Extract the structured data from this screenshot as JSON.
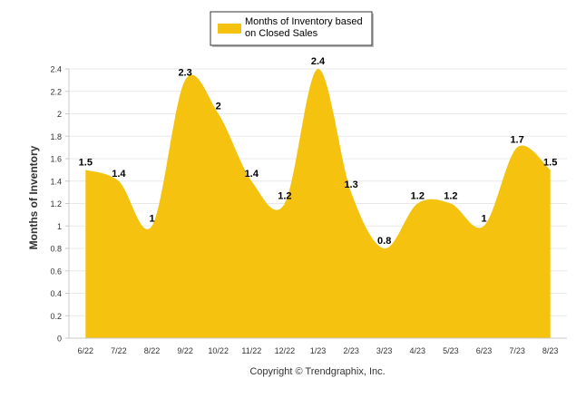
{
  "chart_data": {
    "type": "area",
    "categories": [
      "6/22",
      "7/22",
      "8/22",
      "9/22",
      "10/22",
      "11/22",
      "12/22",
      "1/23",
      "2/23",
      "3/23",
      "4/23",
      "5/23",
      "6/23",
      "7/23",
      "8/23"
    ],
    "series": [
      {
        "name": "Months of Inventory based on Closed Sales",
        "values": [
          1.5,
          1.4,
          1,
          2.3,
          2,
          1.4,
          1.2,
          2.4,
          1.3,
          0.8,
          1.2,
          1.2,
          1,
          1.7,
          1.5
        ]
      }
    ],
    "data_labels": [
      "1.5",
      "1.4",
      "1",
      "2.3",
      "2",
      "1.4",
      "1.2",
      "2.4",
      "1.3",
      "0.8",
      "1.2",
      "1.2",
      "1",
      "1.7",
      "1.5"
    ],
    "legend_lines": [
      "Months of Inventory based",
      "on Closed Sales"
    ],
    "legend_position": "top",
    "ylabel": "Months of Inventory",
    "xlabel": "",
    "ylim": [
      0,
      2.4
    ],
    "yticks": [
      0,
      0.2,
      0.4,
      0.6,
      0.8,
      1,
      1.2,
      1.4,
      1.6,
      1.8,
      2,
      2.2,
      2.4
    ],
    "grid": true,
    "colors": {
      "fill": "#f5c20f",
      "grid": "#e8e8e8",
      "axis": "#c8c8c8",
      "text": "#333333",
      "label": "#000000"
    }
  },
  "footer": {
    "copyright": "Copyright © Trendgraphix, Inc."
  }
}
